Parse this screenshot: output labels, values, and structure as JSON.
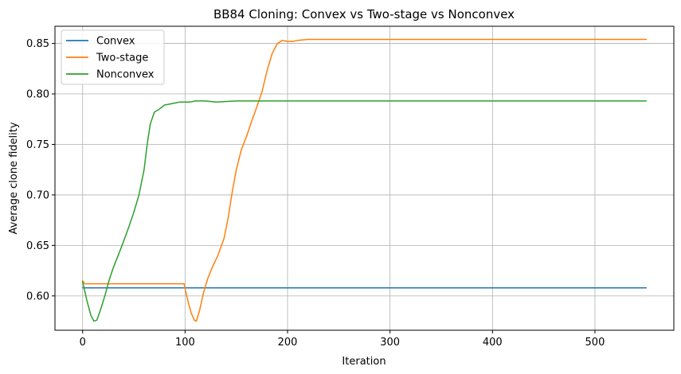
{
  "chart_data": {
    "type": "line",
    "title": "BB84 Cloning: Convex vs Two-stage vs Nonconvex",
    "xlabel": "Iteration",
    "ylabel": "Average clone fidelity",
    "xlim": [
      -27,
      577
    ],
    "ylim": [
      0.566,
      0.867
    ],
    "xticks": [
      0,
      100,
      200,
      300,
      400,
      500
    ],
    "yticks": [
      0.6,
      0.65,
      0.7,
      0.75,
      0.8,
      0.85
    ],
    "grid": true,
    "legend_position": "top-left",
    "series": [
      {
        "name": "Convex",
        "color": "#1f77b4",
        "x": [
          0,
          550
        ],
        "y": [
          0.608,
          0.608
        ]
      },
      {
        "name": "Two-stage",
        "color": "#ff7f0e",
        "x": [
          0,
          2,
          5,
          20,
          60,
          99,
          100,
          103,
          106,
          109,
          111,
          114,
          118,
          122,
          126,
          132,
          138,
          142,
          146,
          150,
          155,
          160,
          165,
          170,
          175,
          180,
          185,
          190,
          195,
          200,
          205,
          210,
          220,
          550
        ],
        "y": [
          0.615,
          0.612,
          0.612,
          0.612,
          0.612,
          0.612,
          0.607,
          0.594,
          0.583,
          0.576,
          0.575,
          0.585,
          0.603,
          0.617,
          0.627,
          0.64,
          0.657,
          0.677,
          0.703,
          0.725,
          0.745,
          0.758,
          0.773,
          0.787,
          0.802,
          0.823,
          0.84,
          0.85,
          0.853,
          0.852,
          0.852,
          0.853,
          0.854,
          0.854
        ]
      },
      {
        "name": "Nonconvex",
        "color": "#2ca02c",
        "x": [
          0,
          4,
          8,
          11,
          14,
          18,
          22,
          26,
          30,
          35,
          40,
          45,
          50,
          55,
          60,
          63,
          66,
          70,
          75,
          80,
          90,
          95,
          100,
          105,
          110,
          115,
          120,
          130,
          150,
          200,
          550
        ],
        "y": [
          0.614,
          0.596,
          0.581,
          0.575,
          0.576,
          0.588,
          0.601,
          0.616,
          0.628,
          0.641,
          0.654,
          0.668,
          0.683,
          0.7,
          0.725,
          0.75,
          0.77,
          0.782,
          0.785,
          0.789,
          0.791,
          0.792,
          0.792,
          0.792,
          0.793,
          0.793,
          0.793,
          0.792,
          0.793,
          0.793,
          0.793
        ]
      }
    ]
  }
}
